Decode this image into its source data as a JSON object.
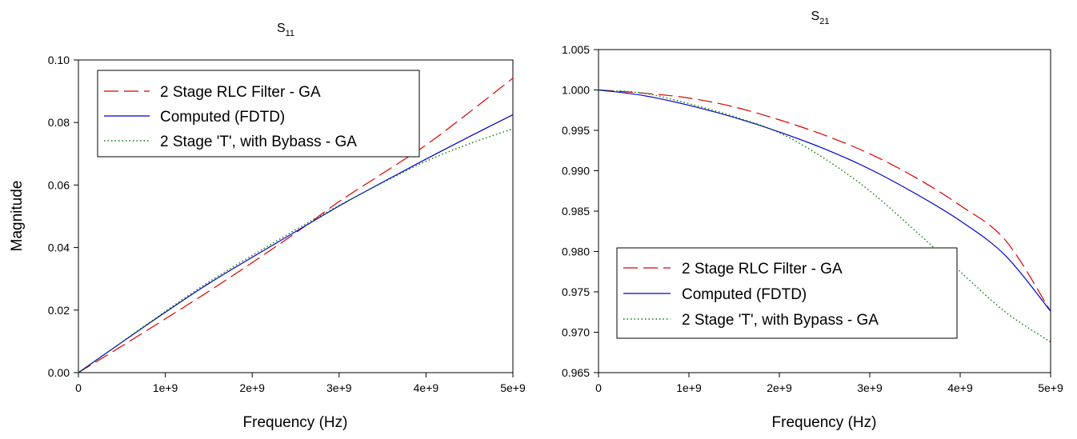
{
  "charts": [
    {
      "title": {
        "main": "S",
        "sub": "11"
      },
      "xlabel": "Frequency (Hz)",
      "ylabel": "Magnitude"
    },
    {
      "title": {
        "main": "S",
        "sub": "21"
      },
      "xlabel": "Frequency (Hz)",
      "ylabel": ""
    }
  ],
  "colors": {
    "rlc": "#dd0000",
    "fdtd": "#0000cc",
    "tee": "#007a00"
  },
  "chart_data": [
    {
      "type": "line",
      "title": "S11",
      "xlabel": "Frequency (Hz)",
      "ylabel": "Magnitude",
      "xlim": [
        0,
        5000000000
      ],
      "ylim": [
        0,
        0.1
      ],
      "xticks": [
        "0",
        "1e+9",
        "2e+9",
        "3e+9",
        "4e+9",
        "5e+9"
      ],
      "yticks": [
        "0.00",
        "0.02",
        "0.04",
        "0.06",
        "0.08",
        "0.10"
      ],
      "legend_position": "top-left",
      "grid": false,
      "x": [
        0,
        500000000,
        1000000000,
        1500000000,
        2000000000,
        2500000000,
        3000000000,
        3500000000,
        4000000000,
        4500000000,
        5000000000
      ],
      "series": [
        {
          "name": "2 Stage RLC Filter - GA",
          "color": "#dd0000",
          "dash": "dashed",
          "values": [
            0,
            0.0085,
            0.0172,
            0.026,
            0.0352,
            0.0447,
            0.0547,
            0.0637,
            0.0728,
            0.0833,
            0.0942
          ]
        },
        {
          "name": "Computed (FDTD)",
          "color": "#0000cc",
          "dash": "solid",
          "values": [
            0,
            0.0097,
            0.0193,
            0.0285,
            0.0369,
            0.0451,
            0.0533,
            0.0609,
            0.0683,
            0.0755,
            0.0825
          ]
        },
        {
          "name": "2 Stage 'T', with Bybass - GA",
          "color": "#007a00",
          "dash": "dotted",
          "values": [
            0,
            0.0098,
            0.0196,
            0.029,
            0.0375,
            0.0457,
            0.0535,
            0.0607,
            0.0676,
            0.0732,
            0.078
          ]
        }
      ]
    },
    {
      "type": "line",
      "title": "S21",
      "xlabel": "Frequency (Hz)",
      "ylabel": "",
      "xlim": [
        0,
        5000000000
      ],
      "ylim": [
        0.965,
        1.005
      ],
      "xticks": [
        "0",
        "1e+9",
        "2e+9",
        "3e+9",
        "4e+9",
        "5e+9"
      ],
      "yticks": [
        "0.965",
        "0.970",
        "0.975",
        "0.980",
        "0.985",
        "0.990",
        "0.995",
        "1.000",
        "1.005"
      ],
      "legend_position": "bottom-left",
      "grid": false,
      "x": [
        0,
        500000000,
        1000000000,
        1500000000,
        2000000000,
        2500000000,
        3000000000,
        3500000000,
        4000000000,
        4500000000,
        5000000000
      ],
      "series": [
        {
          "name": "2 Stage RLC Filter - GA",
          "color": "#dd0000",
          "dash": "dashed",
          "values": [
            1.0,
            0.9996,
            0.999,
            0.9979,
            0.9963,
            0.9944,
            0.9921,
            0.9892,
            0.9857,
            0.9814,
            0.9726
          ]
        },
        {
          "name": "Computed (FDTD)",
          "color": "#0000cc",
          "dash": "solid",
          "values": [
            1.0,
            0.9993,
            0.9981,
            0.9966,
            0.9948,
            0.9927,
            0.9902,
            0.9872,
            0.9838,
            0.9795,
            0.9726
          ]
        },
        {
          "name": "2 Stage 'T', with Bypass - GA",
          "color": "#007a00",
          "dash": "dotted",
          "values": [
            1.0,
            0.9996,
            0.9983,
            0.9967,
            0.9947,
            0.9915,
            0.9875,
            0.9826,
            0.9775,
            0.9725,
            0.9688
          ]
        }
      ]
    }
  ]
}
